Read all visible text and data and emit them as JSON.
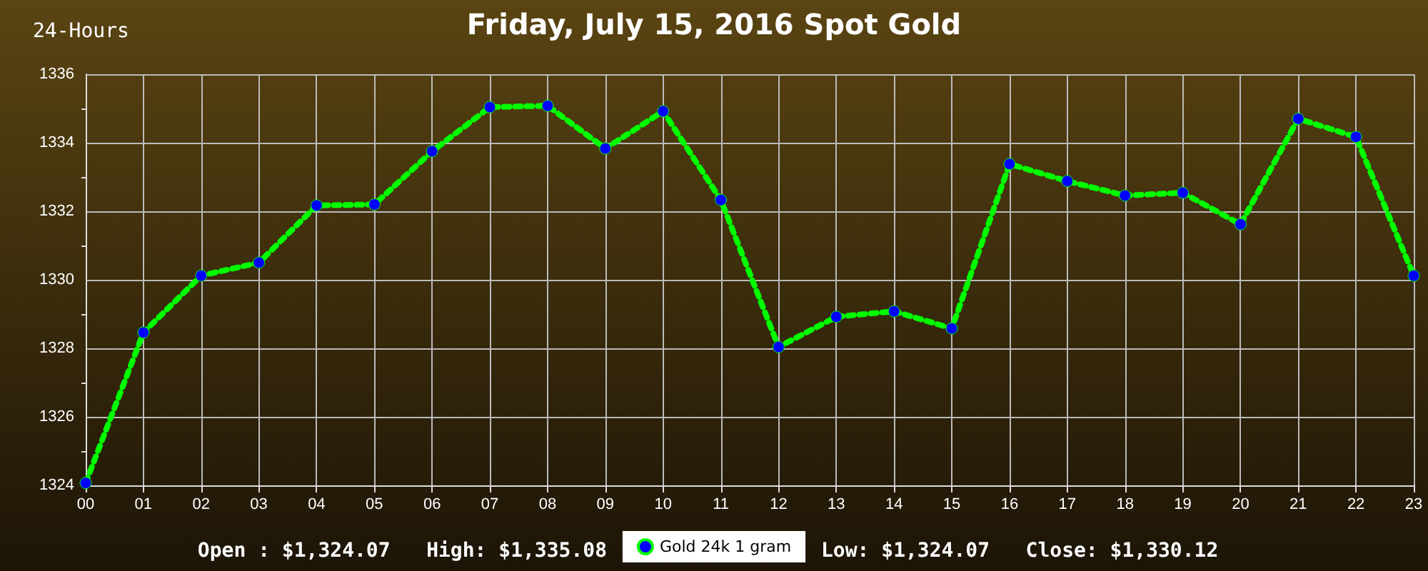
{
  "chart_data": {
    "type": "line",
    "title": "Friday, July 15, 2016 Spot Gold",
    "subtitle": "24-Hours",
    "categories": [
      "00",
      "01",
      "02",
      "03",
      "04",
      "05",
      "06",
      "07",
      "08",
      "09",
      "10",
      "11",
      "12",
      "13",
      "14",
      "15",
      "16",
      "17",
      "18",
      "19",
      "20",
      "21",
      "22",
      "23"
    ],
    "series": [
      {
        "name": "Gold 24k 1 gram",
        "color": "#00ff00",
        "values": [
          1324.07,
          1328.46,
          1330.12,
          1330.5,
          1332.17,
          1332.2,
          1333.75,
          1335.04,
          1335.08,
          1333.83,
          1334.92,
          1332.33,
          1328.04,
          1328.92,
          1329.08,
          1328.58,
          1333.38,
          1332.88,
          1332.46,
          1332.54,
          1331.62,
          1334.7,
          1334.17,
          1330.12
        ]
      }
    ],
    "ylim": [
      1324,
      1336
    ],
    "yticks": [
      1324,
      1326,
      1328,
      1330,
      1332,
      1334,
      1336
    ],
    "grid": true,
    "legend": "bottom",
    "marker": "circle",
    "line_style": "dotted",
    "annotations": [
      "Open : $1,324.07",
      "High: $1,335.08",
      "Low: $1,324.07",
      "Close: $1,330.12"
    ]
  }
}
